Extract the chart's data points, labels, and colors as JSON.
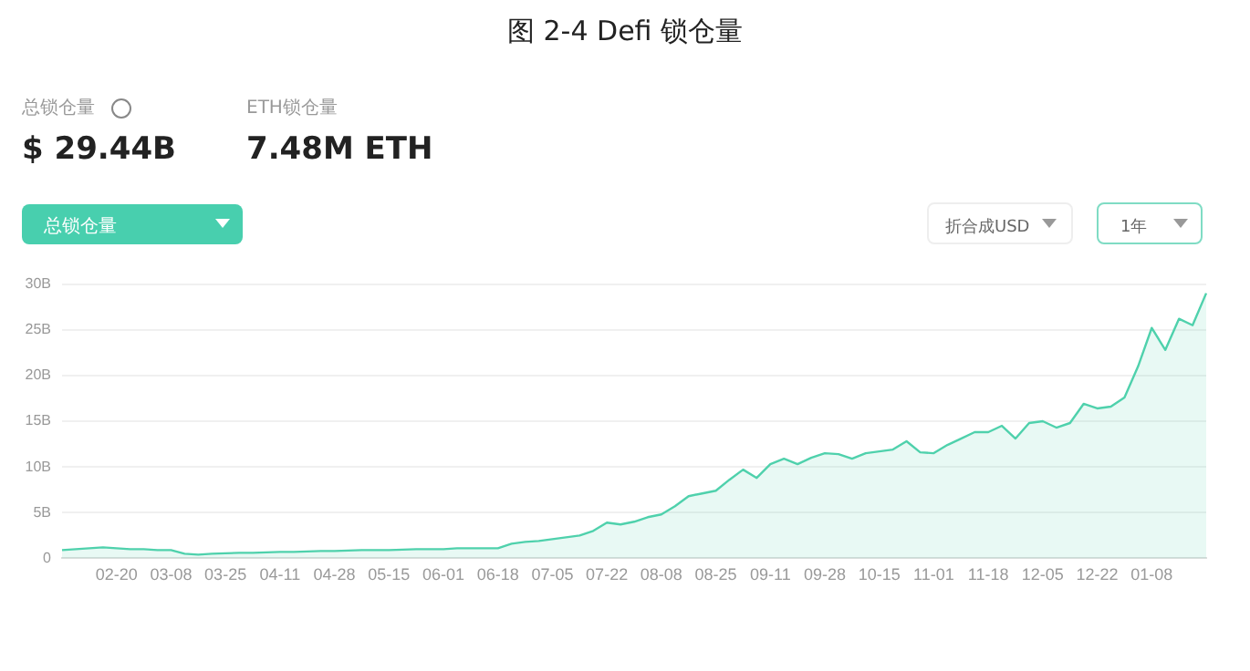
{
  "chart_data": {
    "type": "area",
    "title": "图 2-4 Defi 锁仓量",
    "annotations": [
      "总锁仓量",
      "$ 29.44B",
      "ETH锁仓量",
      "7.48M ETH",
      "总锁仓量",
      "折合成USD",
      "1年"
    ],
    "categories": [
      null,
      null,
      null,
      null,
      "02-20",
      null,
      null,
      null,
      "03-08",
      null,
      null,
      null,
      "03-25",
      null,
      null,
      null,
      "04-11",
      null,
      null,
      null,
      "04-28",
      null,
      null,
      null,
      "05-15",
      null,
      null,
      null,
      "06-01",
      null,
      null,
      null,
      "06-18",
      null,
      null,
      null,
      "07-05",
      null,
      null,
      null,
      "07-22",
      null,
      null,
      null,
      "08-08",
      null,
      null,
      null,
      "08-25",
      null,
      null,
      null,
      "09-11",
      null,
      null,
      null,
      "09-28",
      null,
      null,
      null,
      "10-15",
      null,
      null,
      null,
      "11-01",
      null,
      null,
      null,
      "11-18",
      null,
      null,
      null,
      "12-05",
      null,
      null,
      null,
      "12-22",
      null,
      null,
      null,
      "01-08",
      null,
      null,
      null,
      null
    ],
    "series": [
      {
        "color": "#4fd1ac",
        "values": [
          0.9,
          1.0,
          1.1,
          1.2,
          1.1,
          1.0,
          1.0,
          0.9,
          0.9,
          0.5,
          0.4,
          0.5,
          0.55,
          0.6,
          0.6,
          0.65,
          0.7,
          0.7,
          0.75,
          0.8,
          0.8,
          0.85,
          0.9,
          0.9,
          0.9,
          0.95,
          1.0,
          1.0,
          1.0,
          1.1,
          1.1,
          1.1,
          1.1,
          1.6,
          1.8,
          1.9,
          2.1,
          2.3,
          2.5,
          3.0,
          3.9,
          3.7,
          4.0,
          4.5,
          4.8,
          5.7,
          6.8,
          7.1,
          7.4,
          8.6,
          9.7,
          8.8,
          10.3,
          10.9,
          10.3,
          11.0,
          11.5,
          11.4,
          10.9,
          11.5,
          11.7,
          11.9,
          12.8,
          11.6,
          11.5,
          12.4,
          13.1,
          13.8,
          13.8,
          14.5,
          13.1,
          14.8,
          15.0,
          14.3,
          14.8,
          16.9,
          16.4,
          16.6,
          17.6,
          21.0,
          25.2,
          22.8,
          26.2,
          25.5,
          29.0
        ]
      }
    ],
    "ylim": [
      0,
      30
    ],
    "yticks": [
      0,
      {
        "value": 5,
        "label": "5B"
      },
      {
        "value": 10,
        "label": "10B"
      },
      {
        "value": 15,
        "label": "15B"
      },
      {
        "value": 20,
        "label": "20B"
      },
      {
        "value": 25,
        "label": "25B"
      },
      {
        "value": 30,
        "label": "30B"
      }
    ],
    "grid": "y",
    "legend": false,
    "marker": "none",
    "line_style": "solid"
  }
}
